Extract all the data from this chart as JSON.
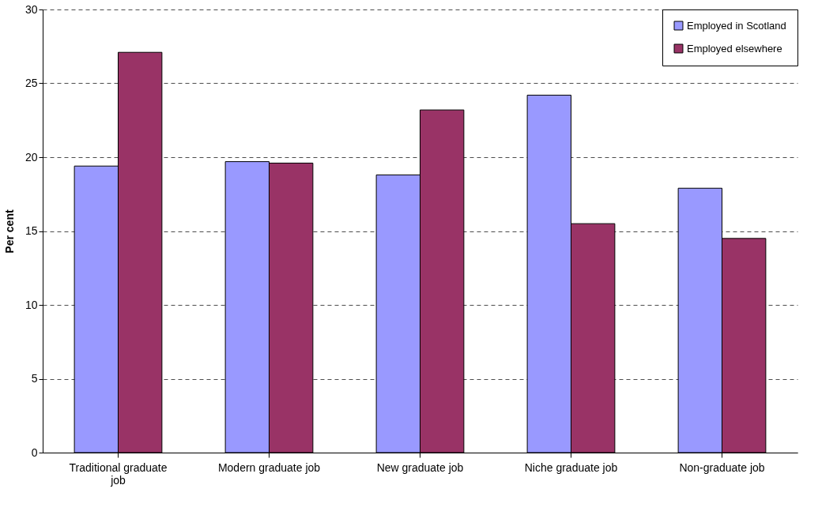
{
  "chart_data": {
    "type": "bar",
    "ylabel": "Per cent",
    "categories": [
      "Traditional graduate job",
      "Modern graduate job",
      "New graduate job",
      "Niche graduate job",
      "Non-graduate job"
    ],
    "series": [
      {
        "name": "Employed in Scotland",
        "color": "#9999ff",
        "values": [
          19.4,
          19.7,
          18.8,
          24.2,
          17.9
        ]
      },
      {
        "name": "Employed elsewhere",
        "color": "#993366",
        "values": [
          27.1,
          19.6,
          23.2,
          15.5,
          14.5
        ]
      }
    ],
    "ylim": [
      0,
      30
    ],
    "yticks": [
      0,
      5,
      10,
      15,
      20,
      25,
      30
    ],
    "grid": "y",
    "legend": "top right"
  }
}
